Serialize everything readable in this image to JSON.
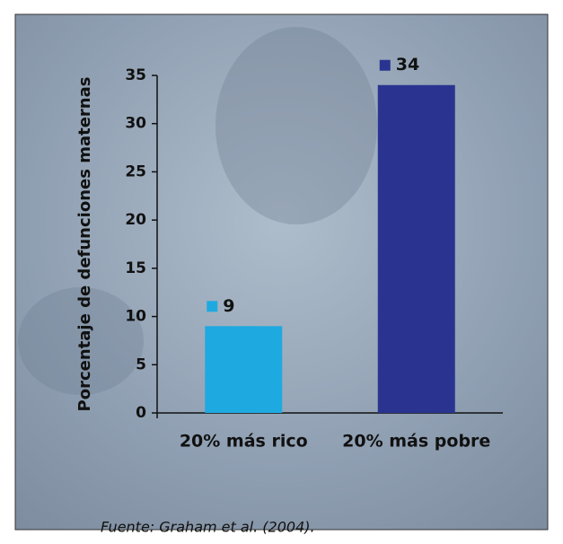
{
  "chart_data": {
    "type": "bar",
    "y_label": "Porcentaje de defunciones maternas",
    "categories": [
      "20% más rico",
      "20% más pobre"
    ],
    "values": [
      9,
      34
    ],
    "colors": [
      "#1ea9e1",
      "#2a3490"
    ],
    "ylim": [
      0,
      35
    ],
    "yticks": [
      0,
      5,
      10,
      15,
      20,
      25,
      30,
      35
    ],
    "source": "Fuente: Graham et al. (2004)."
  }
}
